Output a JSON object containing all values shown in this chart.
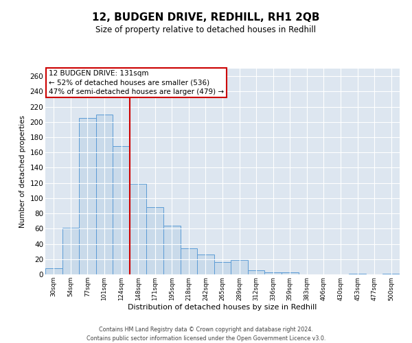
{
  "title": "12, BUDGEN DRIVE, REDHILL, RH1 2QB",
  "subtitle": "Size of property relative to detached houses in Redhill",
  "xlabel": "Distribution of detached houses by size in Redhill",
  "ylabel": "Number of detached properties",
  "bar_labels": [
    "30sqm",
    "54sqm",
    "77sqm",
    "101sqm",
    "124sqm",
    "148sqm",
    "171sqm",
    "195sqm",
    "218sqm",
    "242sqm",
    "265sqm",
    "289sqm",
    "312sqm",
    "336sqm",
    "359sqm",
    "383sqm",
    "406sqm",
    "430sqm",
    "453sqm",
    "477sqm",
    "500sqm"
  ],
  "bar_values": [
    8,
    61,
    205,
    210,
    168,
    119,
    88,
    64,
    34,
    26,
    16,
    19,
    5,
    3,
    3,
    0,
    0,
    0,
    1,
    0,
    1
  ],
  "bar_color": "#c9daea",
  "bar_edge_color": "#5b9bd5",
  "ref_line_index": 4,
  "annotation_line1": "12 BUDGEN DRIVE: 131sqm",
  "annotation_line2": "← 52% of detached houses are smaller (536)",
  "annotation_line3": "47% of semi-detached houses are larger (479) →",
  "annotation_box_facecolor": "#ffffff",
  "annotation_box_edgecolor": "#cc0000",
  "ref_line_color": "#cc0000",
  "ylim": [
    0,
    270
  ],
  "yticks": [
    0,
    20,
    40,
    60,
    80,
    100,
    120,
    140,
    160,
    180,
    200,
    220,
    240,
    260
  ],
  "background_color": "#dde6f0",
  "grid_color": "#ffffff",
  "footer_line1": "Contains HM Land Registry data © Crown copyright and database right 2024.",
  "footer_line2": "Contains public sector information licensed under the Open Government Licence v3.0."
}
